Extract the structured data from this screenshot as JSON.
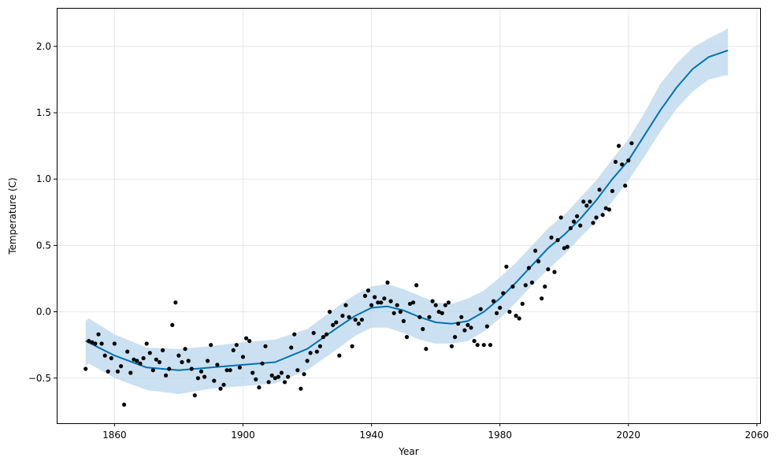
{
  "chart_data": {
    "type": "scatter",
    "title": "",
    "xlabel": "Year",
    "ylabel": "Temperature (C)",
    "xlim": [
      1842,
      2061
    ],
    "ylim": [
      -0.84,
      2.29
    ],
    "grid": true,
    "xticks": [
      1860,
      1900,
      1940,
      1980,
      2020,
      2060
    ],
    "yticks": [
      -0.5,
      0.0,
      0.5,
      1.0,
      1.5,
      2.0
    ],
    "xtick_labels": [
      "1860",
      "1900",
      "1940",
      "1980",
      "2020",
      "2060"
    ],
    "ytick_labels": [
      "−0.5",
      "0.0",
      "0.5",
      "1.0",
      "1.5",
      "2.0"
    ],
    "colors": {
      "forecast_line": "#0072B2",
      "uncertainty_band": "#b9d7ec",
      "observed_points": "#000000",
      "grid": "#e6e6e6"
    },
    "series": [
      {
        "type": "scatter",
        "points": [
          [
            1851,
            -0.43
          ],
          [
            1852,
            -0.22
          ],
          [
            1853,
            -0.23
          ],
          [
            1854,
            -0.24
          ],
          [
            1855,
            -0.17
          ],
          [
            1856,
            -0.24
          ],
          [
            1857,
            -0.33
          ],
          [
            1858,
            -0.45
          ],
          [
            1859,
            -0.35
          ],
          [
            1860,
            -0.24
          ],
          [
            1861,
            -0.45
          ],
          [
            1862,
            -0.41
          ],
          [
            1863,
            -0.7
          ],
          [
            1864,
            -0.3
          ],
          [
            1865,
            -0.46
          ],
          [
            1866,
            -0.36
          ],
          [
            1867,
            -0.37
          ],
          [
            1868,
            -0.39
          ],
          [
            1869,
            -0.35
          ],
          [
            1870,
            -0.24
          ],
          [
            1871,
            -0.31
          ],
          [
            1872,
            -0.44
          ],
          [
            1873,
            -0.36
          ],
          [
            1874,
            -0.38
          ],
          [
            1875,
            -0.29
          ],
          [
            1876,
            -0.48
          ],
          [
            1877,
            -0.43
          ],
          [
            1878,
            -0.1
          ],
          [
            1879,
            0.07
          ],
          [
            1880,
            -0.33
          ],
          [
            1881,
            -0.38
          ],
          [
            1882,
            -0.28
          ],
          [
            1883,
            -0.37
          ],
          [
            1884,
            -0.43
          ],
          [
            1885,
            -0.63
          ],
          [
            1886,
            -0.5
          ],
          [
            1887,
            -0.45
          ],
          [
            1888,
            -0.49
          ],
          [
            1889,
            -0.37
          ],
          [
            1890,
            -0.25
          ],
          [
            1891,
            -0.52
          ],
          [
            1892,
            -0.4
          ],
          [
            1893,
            -0.58
          ],
          [
            1894,
            -0.55
          ],
          [
            1895,
            -0.44
          ],
          [
            1896,
            -0.44
          ],
          [
            1897,
            -0.29
          ],
          [
            1898,
            -0.25
          ],
          [
            1899,
            -0.42
          ],
          [
            1900,
            -0.34
          ],
          [
            1901,
            -0.2
          ],
          [
            1902,
            -0.22
          ],
          [
            1903,
            -0.46
          ],
          [
            1904,
            -0.51
          ],
          [
            1905,
            -0.57
          ],
          [
            1906,
            -0.39
          ],
          [
            1907,
            -0.26
          ],
          [
            1908,
            -0.53
          ],
          [
            1909,
            -0.48
          ],
          [
            1910,
            -0.5
          ],
          [
            1911,
            -0.49
          ],
          [
            1912,
            -0.46
          ],
          [
            1913,
            -0.53
          ],
          [
            1914,
            -0.49
          ],
          [
            1915,
            -0.27
          ],
          [
            1916,
            -0.17
          ],
          [
            1917,
            -0.44
          ],
          [
            1918,
            -0.58
          ],
          [
            1919,
            -0.47
          ],
          [
            1920,
            -0.37
          ],
          [
            1921,
            -0.31
          ],
          [
            1922,
            -0.16
          ],
          [
            1923,
            -0.3
          ],
          [
            1924,
            -0.26
          ],
          [
            1925,
            -0.19
          ],
          [
            1926,
            -0.17
          ],
          [
            1927,
            0.0
          ],
          [
            1928,
            -0.1
          ],
          [
            1929,
            -0.08
          ],
          [
            1930,
            -0.33
          ],
          [
            1931,
            -0.03
          ],
          [
            1932,
            0.05
          ],
          [
            1933,
            -0.04
          ],
          [
            1934,
            -0.26
          ],
          [
            1935,
            -0.06
          ],
          [
            1936,
            -0.09
          ],
          [
            1937,
            -0.06
          ],
          [
            1938,
            0.12
          ],
          [
            1939,
            0.16
          ],
          [
            1940,
            0.05
          ],
          [
            1941,
            0.11
          ],
          [
            1942,
            0.07
          ],
          [
            1943,
            0.07
          ],
          [
            1944,
            0.1
          ],
          [
            1945,
            0.22
          ],
          [
            1946,
            0.08
          ],
          [
            1947,
            -0.01
          ],
          [
            1948,
            0.05
          ],
          [
            1949,
            0.0
          ],
          [
            1950,
            -0.07
          ],
          [
            1951,
            -0.19
          ],
          [
            1952,
            0.06
          ],
          [
            1953,
            0.07
          ],
          [
            1954,
            0.2
          ],
          [
            1955,
            -0.04
          ],
          [
            1956,
            -0.13
          ],
          [
            1957,
            -0.28
          ],
          [
            1958,
            -0.04
          ],
          [
            1959,
            0.08
          ],
          [
            1960,
            0.05
          ],
          [
            1961,
            0.0
          ],
          [
            1962,
            -0.01
          ],
          [
            1963,
            0.05
          ],
          [
            1964,
            0.07
          ],
          [
            1965,
            -0.26
          ],
          [
            1966,
            -0.19
          ],
          [
            1967,
            -0.09
          ],
          [
            1968,
            -0.04
          ],
          [
            1969,
            -0.14
          ],
          [
            1970,
            -0.1
          ],
          [
            1971,
            -0.12
          ],
          [
            1972,
            -0.22
          ],
          [
            1973,
            -0.25
          ],
          [
            1974,
            0.02
          ],
          [
            1975,
            -0.25
          ],
          [
            1976,
            -0.11
          ],
          [
            1977,
            -0.25
          ],
          [
            1978,
            0.08
          ],
          [
            1979,
            -0.01
          ],
          [
            1980,
            0.03
          ],
          [
            1981,
            0.14
          ],
          [
            1982,
            0.34
          ],
          [
            1983,
            0.0
          ],
          [
            1984,
            0.19
          ],
          [
            1985,
            -0.03
          ],
          [
            1986,
            -0.05
          ],
          [
            1987,
            0.06
          ],
          [
            1988,
            0.2
          ],
          [
            1989,
            0.33
          ],
          [
            1990,
            0.22
          ],
          [
            1991,
            0.46
          ],
          [
            1992,
            0.38
          ],
          [
            1993,
            0.1
          ],
          [
            1994,
            0.19
          ],
          [
            1995,
            0.32
          ],
          [
            1996,
            0.56
          ],
          [
            1997,
            0.3
          ],
          [
            1998,
            0.54
          ],
          [
            1999,
            0.71
          ],
          [
            2000,
            0.48
          ],
          [
            2001,
            0.49
          ],
          [
            2002,
            0.63
          ],
          [
            2003,
            0.68
          ],
          [
            2004,
            0.72
          ],
          [
            2005,
            0.65
          ],
          [
            2006,
            0.83
          ],
          [
            2007,
            0.8
          ],
          [
            2008,
            0.83
          ],
          [
            2009,
            0.67
          ],
          [
            2010,
            0.71
          ],
          [
            2011,
            0.92
          ],
          [
            2012,
            0.73
          ],
          [
            2013,
            0.78
          ],
          [
            2014,
            0.77
          ],
          [
            2015,
            0.91
          ],
          [
            2016,
            1.13
          ],
          [
            2017,
            1.25
          ],
          [
            2018,
            1.11
          ],
          [
            2019,
            0.95
          ],
          [
            2020,
            1.14
          ],
          [
            2021,
            1.27
          ]
        ]
      },
      {
        "type": "line",
        "x": [
          1851,
          1860,
          1870,
          1880,
          1890,
          1900,
          1910,
          1920,
          1930,
          1935,
          1940,
          1945,
          1950,
          1955,
          1960,
          1965,
          1970,
          1975,
          1980,
          1985,
          1990,
          1995,
          2000,
          2005,
          2010,
          2015,
          2020,
          2025,
          2030,
          2035,
          2040,
          2045,
          2051
        ],
        "y": [
          -0.22,
          -0.33,
          -0.42,
          -0.44,
          -0.42,
          -0.4,
          -0.38,
          -0.28,
          -0.11,
          -0.03,
          0.03,
          0.04,
          0.01,
          -0.04,
          -0.08,
          -0.09,
          -0.07,
          0.0,
          0.1,
          0.22,
          0.35,
          0.48,
          0.58,
          0.7,
          0.84,
          1.0,
          1.14,
          1.33,
          1.52,
          1.69,
          1.83,
          1.92,
          1.97
        ]
      },
      {
        "type": "area",
        "x": [
          1851,
          1852,
          1860,
          1870,
          1880,
          1890,
          1900,
          1910,
          1920,
          1930,
          1935,
          1940,
          1945,
          1950,
          1955,
          1960,
          1965,
          1970,
          1975,
          1980,
          1985,
          1990,
          1995,
          2000,
          2005,
          2010,
          2015,
          2020,
          2025,
          2030,
          2035,
          2040,
          2045,
          2050,
          2051
        ],
        "upper": [
          -0.07,
          -0.05,
          -0.17,
          -0.27,
          -0.28,
          -0.26,
          -0.23,
          -0.21,
          -0.13,
          0.05,
          0.13,
          0.19,
          0.21,
          0.17,
          0.12,
          0.07,
          0.06,
          0.1,
          0.16,
          0.26,
          0.37,
          0.5,
          0.63,
          0.73,
          0.86,
          0.99,
          1.15,
          1.3,
          1.5,
          1.72,
          1.87,
          1.99,
          2.06,
          2.12,
          2.14
        ],
        "lower": [
          -0.41,
          -0.39,
          -0.5,
          -0.59,
          -0.62,
          -0.58,
          -0.56,
          -0.54,
          -0.44,
          -0.27,
          -0.18,
          -0.12,
          -0.12,
          -0.16,
          -0.21,
          -0.24,
          -0.24,
          -0.22,
          -0.15,
          -0.05,
          0.07,
          0.2,
          0.32,
          0.43,
          0.56,
          0.68,
          0.83,
          0.99,
          1.17,
          1.36,
          1.53,
          1.66,
          1.75,
          1.78,
          1.78
        ]
      }
    ]
  }
}
